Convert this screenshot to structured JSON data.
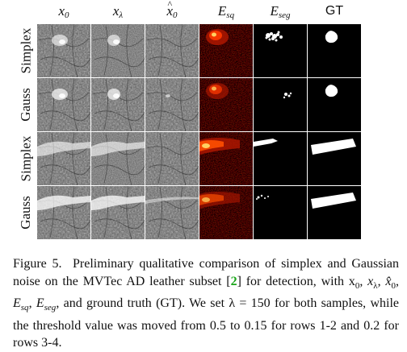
{
  "columns": [
    {
      "base": "x",
      "sub": "0",
      "hat": false
    },
    {
      "base": "x",
      "sub": "λ",
      "hat": false
    },
    {
      "base": "x",
      "sub": "0",
      "hat": true
    },
    {
      "base": "E",
      "sub": "sq",
      "hat": false
    },
    {
      "base": "E",
      "sub": "seg",
      "hat": false
    },
    {
      "text": "GT"
    }
  ],
  "rows": [
    {
      "label": "Simplex",
      "mask": "blob"
    },
    {
      "label": "Gauss",
      "mask": "blob"
    },
    {
      "label": "Simplex",
      "mask": "band"
    },
    {
      "label": "Gauss",
      "mask": "band"
    }
  ],
  "caption": {
    "figure_label": "Figure 5.",
    "text_1": "Preliminary qualitative comparison of simplex and Gaussian noise on the MVTec AD leather subset [",
    "ref": "2",
    "text_2": "] for detection, with x",
    "text_3": ", and ground truth (GT). We set λ = 150 for both samples, while the threshold value was moved from 0.5 to 0.15 for rows 1-2 and 0.2 for rows 3-4."
  },
  "colors": {
    "heat": "#ff3a00",
    "gt": "#ffffff",
    "background": "#000000",
    "ref": "#1aa51a"
  }
}
